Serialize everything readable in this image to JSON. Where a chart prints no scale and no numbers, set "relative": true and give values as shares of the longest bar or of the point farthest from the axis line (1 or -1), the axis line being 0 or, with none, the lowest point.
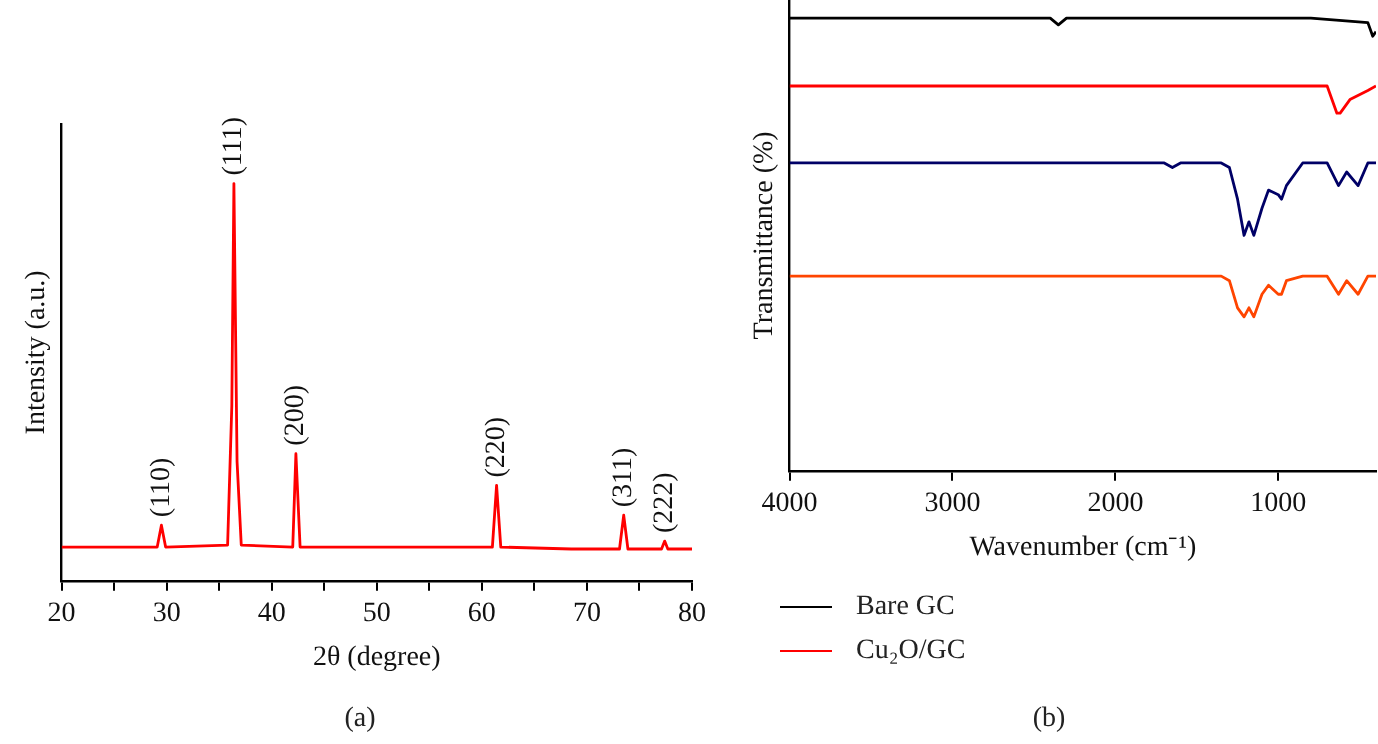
{
  "chart_data": [
    {
      "type": "line",
      "xlabel": "2θ (degree)",
      "ylabel": "Intensity (a.u.)",
      "relative": true,
      "xlim": [
        20,
        80
      ],
      "xticks": [
        20,
        {
          "value": 25,
          "label": null
        },
        30,
        {
          "value": 35,
          "label": null
        },
        40,
        {
          "value": 45,
          "label": null
        },
        50,
        {
          "value": 55,
          "label": null
        },
        60,
        {
          "value": 65,
          "label": null
        },
        70,
        {
          "value": 75,
          "label": null
        },
        80
      ],
      "grid": false,
      "legend": false,
      "series": [
        {
          "color": "#ff0000",
          "x": [
            20,
            29.1,
            29.5,
            29.9,
            35.8,
            36.2,
            36.4,
            36.7,
            37.1,
            42.0,
            42.3,
            42.7,
            61.0,
            61.4,
            61.8,
            68.5,
            73.1,
            73.5,
            73.9,
            77.1,
            77.4,
            77.7,
            80
          ],
          "values": [
            0.085,
            0.085,
            0.14,
            0.085,
            0.09,
            0.44,
            1,
            0.3,
            0.09,
            0.085,
            0.32,
            0.085,
            0.085,
            0.24,
            0.085,
            0.08,
            0.08,
            0.165,
            0.08,
            0.08,
            0.1,
            0.08,
            0.08
          ]
        }
      ],
      "annotations": [
        {
          "text": "(110)",
          "x": 29.5,
          "y": 0.14
        },
        {
          "text": "(111)",
          "x": 36.4,
          "y": 1
        },
        {
          "text": "(200)",
          "x": 42.3,
          "y": 0.32
        },
        {
          "text": "(220)",
          "x": 61.4,
          "y": 0.24
        },
        {
          "text": "(311)",
          "x": 73.5,
          "y": 0.165
        },
        {
          "text": "(222)",
          "x": 77.4,
          "y": 0.1
        },
        "(a)"
      ]
    },
    {
      "type": "line",
      "xlabel": "Wavenumber (cm⁻¹)",
      "ylabel": "Transmittance (%)",
      "relative": true,
      "xlim": [
        4000,
        400
      ],
      "xticks": [
        4000,
        3000,
        2000,
        1000
      ],
      "grid": false,
      "legend": "bottom",
      "series": [
        {
          "name": "Bare GC",
          "color": "#000000",
          "x": [
            4000,
            3000,
            2400,
            2350,
            2300,
            1600,
            800,
            450,
            420,
            400
          ],
          "values": [
            1,
            1,
            1,
            0.985,
            1,
            1,
            1,
            0.99,
            0.96,
            0.97
          ]
        },
        {
          "name": "Cu₂O/GC",
          "color": "#ff0000",
          "x": [
            4000,
            1000,
            700,
            640,
            620,
            560,
            450,
            400
          ],
          "values": [
            0.85,
            0.85,
            0.85,
            0.79,
            0.79,
            0.82,
            0.84,
            0.85
          ]
        },
        {
          "color": "#000066",
          "x": [
            4000,
            1700,
            1650,
            1600,
            1350,
            1300,
            1250,
            1210,
            1180,
            1150,
            1100,
            1060,
            1000,
            980,
            950,
            850,
            700,
            630,
            580,
            510,
            450,
            400
          ],
          "values": [
            0.68,
            0.68,
            0.67,
            0.68,
            0.68,
            0.67,
            0.6,
            0.52,
            0.55,
            0.52,
            0.58,
            0.62,
            0.61,
            0.6,
            0.63,
            0.68,
            0.68,
            0.63,
            0.66,
            0.63,
            0.68,
            0.68
          ]
        },
        {
          "color": "#ff4500",
          "x": [
            4000,
            1350,
            1300,
            1250,
            1210,
            1180,
            1150,
            1100,
            1060,
            1000,
            980,
            950,
            850,
            700,
            630,
            580,
            510,
            450,
            400
          ],
          "values": [
            0.43,
            0.43,
            0.42,
            0.36,
            0.34,
            0.36,
            0.34,
            0.39,
            0.41,
            0.39,
            0.39,
            0.42,
            0.43,
            0.43,
            0.39,
            0.42,
            0.39,
            0.43,
            0.43
          ]
        }
      ],
      "annotations": [
        "(b)"
      ]
    }
  ]
}
